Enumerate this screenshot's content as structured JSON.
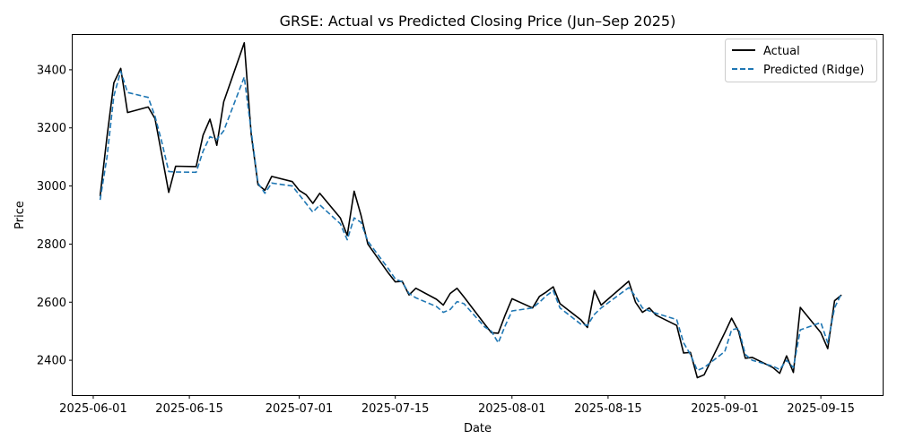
{
  "chart_data": {
    "type": "line",
    "title": "GRSE: Actual vs Predicted Closing Price (Jun–Sep 2025)",
    "xlabel": "Date",
    "ylabel": "Price",
    "x_ticks": [
      "2025-06-01",
      "2025-06-15",
      "2025-07-01",
      "2025-07-15",
      "2025-08-01",
      "2025-08-15",
      "2025-09-01",
      "2025-09-15"
    ],
    "y_ticks": [
      2400,
      2600,
      2800,
      3000,
      3200,
      3400
    ],
    "xlim": [
      "2025-05-29",
      "2025-09-24"
    ],
    "ylim": [
      2280,
      3520
    ],
    "grid": false,
    "legend_position": "top-right",
    "dates": [
      "2025-06-02",
      "2025-06-03",
      "2025-06-04",
      "2025-06-05",
      "2025-06-06",
      "2025-06-09",
      "2025-06-10",
      "2025-06-11",
      "2025-06-12",
      "2025-06-13",
      "2025-06-16",
      "2025-06-17",
      "2025-06-18",
      "2025-06-19",
      "2025-06-20",
      "2025-06-23",
      "2025-06-24",
      "2025-06-25",
      "2025-06-26",
      "2025-06-27",
      "2025-06-30",
      "2025-07-01",
      "2025-07-02",
      "2025-07-03",
      "2025-07-04",
      "2025-07-07",
      "2025-07-08",
      "2025-07-09",
      "2025-07-10",
      "2025-07-11",
      "2025-07-14",
      "2025-07-15",
      "2025-07-16",
      "2025-07-17",
      "2025-07-18",
      "2025-07-21",
      "2025-07-22",
      "2025-07-23",
      "2025-07-24",
      "2025-07-25",
      "2025-07-28",
      "2025-07-29",
      "2025-07-30",
      "2025-07-31",
      "2025-08-01",
      "2025-08-04",
      "2025-08-05",
      "2025-08-06",
      "2025-08-07",
      "2025-08-08",
      "2025-08-11",
      "2025-08-12",
      "2025-08-13",
      "2025-08-14",
      "2025-08-18",
      "2025-08-19",
      "2025-08-20",
      "2025-08-21",
      "2025-08-22",
      "2025-08-25",
      "2025-08-26",
      "2025-08-27",
      "2025-08-28",
      "2025-08-29",
      "2025-09-01",
      "2025-09-02",
      "2025-09-03",
      "2025-09-04",
      "2025-09-05",
      "2025-09-08",
      "2025-09-09",
      "2025-09-10",
      "2025-09-11",
      "2025-09-12",
      "2025-09-15",
      "2025-09-16",
      "2025-09-17",
      "2025-09-18"
    ],
    "series": [
      {
        "name": "Actual",
        "color": "#000000",
        "style": "solid",
        "values": [
          2965,
          3170,
          3355,
          3405,
          3253,
          3272,
          3232,
          3105,
          2978,
          3068,
          3067,
          3175,
          3230,
          3140,
          3290,
          3493,
          3180,
          3005,
          2985,
          3033,
          3015,
          2985,
          2970,
          2940,
          2975,
          2890,
          2830,
          2982,
          2900,
          2800,
          2700,
          2670,
          2672,
          2625,
          2648,
          2610,
          2590,
          2630,
          2648,
          2618,
          2525,
          2495,
          2493,
          2555,
          2612,
          2580,
          2620,
          2635,
          2653,
          2595,
          2540,
          2513,
          2640,
          2590,
          2672,
          2600,
          2565,
          2580,
          2555,
          2520,
          2425,
          2427,
          2340,
          2350,
          2495,
          2545,
          2500,
          2407,
          2410,
          2375,
          2355,
          2415,
          2358,
          2582,
          2495,
          2440,
          2605,
          2625
        ]
      },
      {
        "name": "Predicted (Ridge)",
        "color": "#1f77b4",
        "style": "dashed",
        "values": [
          2952,
          3100,
          3310,
          3395,
          3322,
          3305,
          3240,
          3150,
          3050,
          3048,
          3047,
          3120,
          3170,
          3160,
          3190,
          3375,
          3190,
          3010,
          2975,
          3010,
          3000,
          2970,
          2940,
          2910,
          2935,
          2870,
          2815,
          2890,
          2875,
          2810,
          2715,
          2680,
          2670,
          2630,
          2615,
          2585,
          2565,
          2575,
          2602,
          2595,
          2515,
          2500,
          2460,
          2518,
          2570,
          2580,
          2600,
          2622,
          2640,
          2580,
          2525,
          2520,
          2558,
          2580,
          2650,
          2620,
          2580,
          2570,
          2562,
          2540,
          2460,
          2420,
          2365,
          2375,
          2430,
          2505,
          2510,
          2420,
          2400,
          2380,
          2368,
          2400,
          2375,
          2505,
          2530,
          2460,
          2580,
          2630
        ]
      }
    ]
  }
}
